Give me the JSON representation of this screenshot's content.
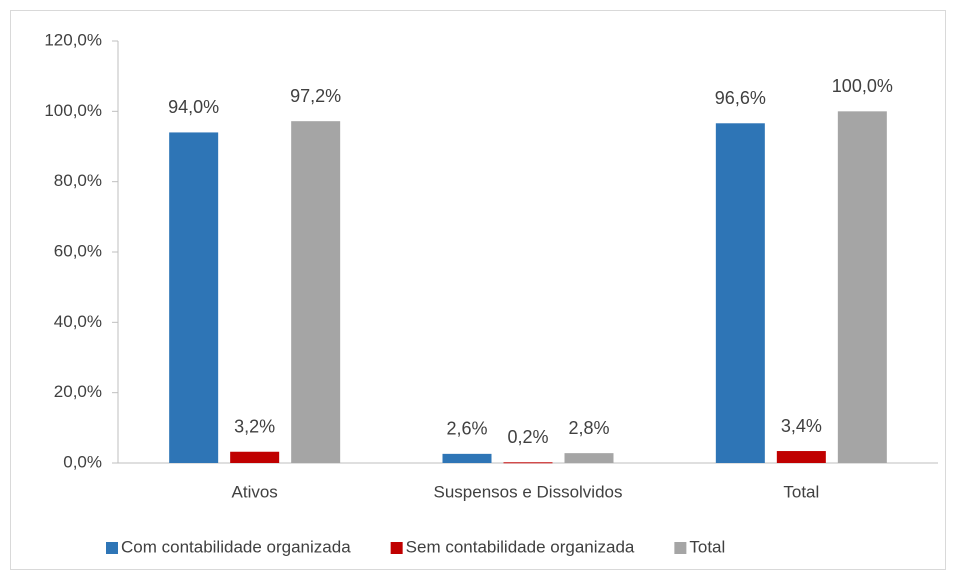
{
  "chart_data": {
    "type": "bar",
    "categories": [
      "Ativos",
      "Suspensos e Dissolvidos",
      "Total"
    ],
    "series": [
      {
        "name": "Com contabilidade organizada",
        "color": "#2e75b6",
        "values": [
          94.0,
          2.6,
          96.6
        ],
        "value_labels": [
          "94,0%",
          "2,6%",
          "96,6%"
        ]
      },
      {
        "name": "Sem contabilidade organizada",
        "color": "#c00000",
        "values": [
          3.2,
          0.2,
          3.4
        ],
        "value_labels": [
          "3,2%",
          "0,2%",
          "3,4%"
        ]
      },
      {
        "name": "Total",
        "color": "#a5a5a5",
        "values": [
          97.2,
          2.8,
          100.0
        ],
        "value_labels": [
          "97,2%",
          "2,8%",
          "100,0%"
        ]
      }
    ],
    "ylim": [
      0,
      120
    ],
    "yticks": [
      {
        "value": 0,
        "label": "0,0%"
      },
      {
        "value": 20,
        "label": "20,0%"
      },
      {
        "value": 40,
        "label": "40,0%"
      },
      {
        "value": 60,
        "label": "60,0%"
      },
      {
        "value": 80,
        "label": "80,0%"
      },
      {
        "value": 100,
        "label": "100,0%"
      },
      {
        "value": 120,
        "label": "120,0%"
      }
    ],
    "grid": false,
    "legend": "bottom"
  }
}
